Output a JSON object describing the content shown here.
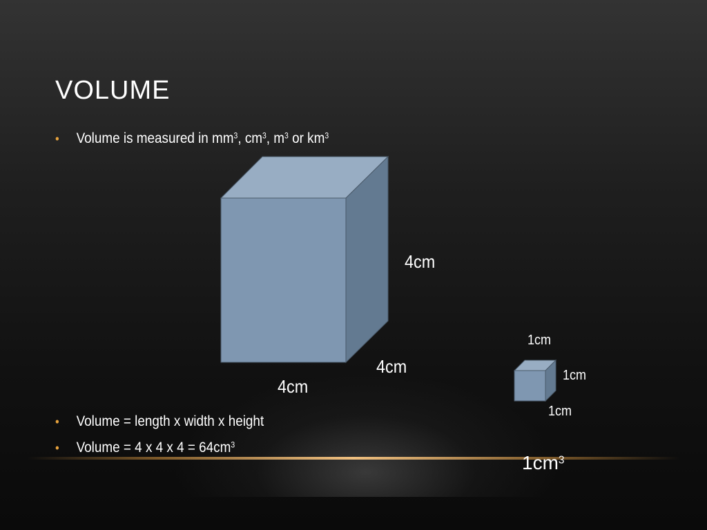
{
  "slide": {
    "title": "Volume",
    "bullets_top": [
      {
        "parts": [
          "Volume is measured in mm",
          "3",
          ", cm",
          "3",
          ", m",
          "3",
          " or km",
          "3"
        ]
      }
    ],
    "bullets_bottom": [
      {
        "text": "Volume = length x width x height"
      },
      {
        "text": "Volume = 4 x 4 x 4 = 64cm",
        "sup": "3"
      }
    ]
  },
  "big_cube": {
    "height_label": "4cm",
    "depth_label": "4cm",
    "width_label": "4cm"
  },
  "small_cube": {
    "top_label": "1cm",
    "side_label": "1cm",
    "bottom_label": "1cm",
    "result_base": "1cm",
    "result_sup": "3"
  },
  "colors": {
    "cube_front": "#7f97b1",
    "cube_top": "#98adc3",
    "cube_side": "#637a91",
    "cube_edge": "#4a5a6a",
    "bullet": "#e8a33d",
    "accent_line": "#f0c080"
  }
}
